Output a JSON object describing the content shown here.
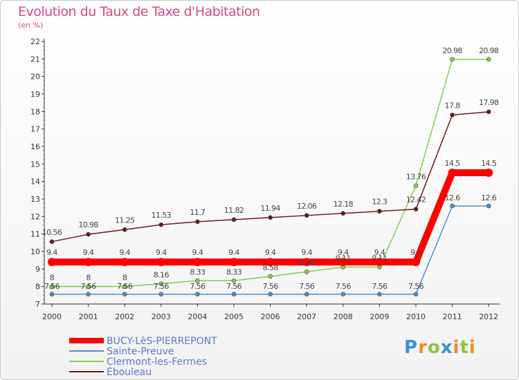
{
  "title": "Evolution du Taux de Taxe d'Habitation",
  "subtitle": "(en %)",
  "logo": {
    "text": "Proxiti",
    "letters": [
      "P",
      "r",
      "o",
      "x",
      "i",
      "t",
      "i"
    ],
    "colors": [
      "#3a8fd8",
      "#f08a24",
      "#8cc63e",
      "#3a8fd8",
      "#f08a24",
      "#8cc63e",
      "#f08a24"
    ]
  },
  "chart_data": {
    "type": "line",
    "title": "Evolution du Taux de Taxe d'Habitation",
    "ylabel": "(en %)",
    "x": [
      "2000",
      "2001",
      "2002",
      "2003",
      "2004",
      "2005",
      "2006",
      "2007",
      "2008",
      "2009",
      "2010",
      "2011",
      "2012"
    ],
    "ylim": [
      7,
      22
    ],
    "yticks": [
      "7",
      "8",
      "9",
      "10",
      "11",
      "12",
      "13",
      "14",
      "15",
      "16",
      "17",
      "18",
      "19",
      "20",
      "21",
      "22"
    ],
    "grid": false,
    "legend": "bottom-left",
    "series": [
      {
        "name": "BUCY-LèS-PIERREPONT",
        "color": "#ff0000",
        "values": [
          9.4,
          9.4,
          9.4,
          9.4,
          9.4,
          9.4,
          9.4,
          9.4,
          9.4,
          9.4,
          9.4,
          14.5,
          14.5
        ],
        "labels": [
          "9.4",
          "9.4",
          "9.4",
          "9.4",
          "9.4",
          "9.4",
          "9.4",
          "9.4",
          "9.4",
          "9.4",
          "9.4",
          "14.5",
          "14.5"
        ]
      },
      {
        "name": "Sainte-Preuve",
        "color": "#4a90d0",
        "values": [
          7.56,
          7.56,
          7.56,
          7.56,
          7.56,
          7.56,
          7.56,
          7.56,
          7.56,
          7.56,
          7.56,
          12.6,
          12.6
        ],
        "labels": [
          "7.56",
          "7.56",
          "7.56",
          "7.56",
          "7.56",
          "7.56",
          "7.56",
          "7.56",
          "7.56",
          "7.56",
          "7.56",
          "12.6",
          "12.6"
        ]
      },
      {
        "name": "Clermont-les-Fermes",
        "color": "#7ed04a",
        "values": [
          8,
          8,
          8,
          8.16,
          8.33,
          8.33,
          8.58,
          8.84,
          9.11,
          9.11,
          13.76,
          20.98,
          20.98
        ],
        "labels": [
          "8",
          "8",
          "8",
          "8.16",
          "8.33",
          "8.33",
          "8.58",
          "8.84",
          "9.11",
          "9.11",
          "13.76",
          "20.98",
          "20.98"
        ]
      },
      {
        "name": "Ébouleau",
        "color": "#6b1a1a",
        "values": [
          10.56,
          10.98,
          11.25,
          11.53,
          11.7,
          11.82,
          11.94,
          12.06,
          12.18,
          12.3,
          12.42,
          17.8,
          17.98
        ],
        "labels": [
          "10.56",
          "10.98",
          "11.25",
          "11.53",
          "11.7",
          "11.82",
          "11.94",
          "12.06",
          "12.18",
          "12.3",
          "12.42",
          "17.8",
          "17.98"
        ]
      }
    ]
  }
}
